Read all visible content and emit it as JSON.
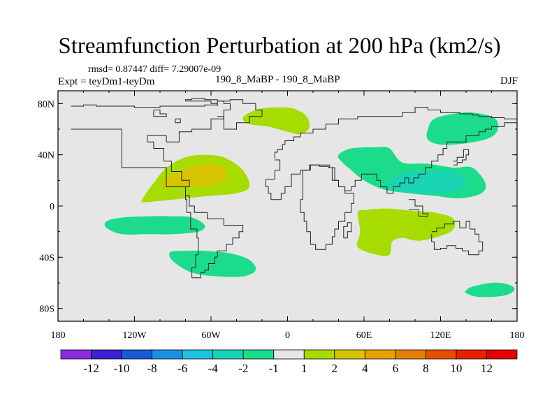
{
  "chart_data": {
    "type": "heatmap",
    "title": "Streamfunction Perturbation at 200 hPa (km2/s)",
    "stats_text": "rmsd= 0.87447  diff= 7.29007e-09",
    "left_label": "Expt = teyDm1-teyDm",
    "center_label": "190_8_MaBP - 190_8_MaBP",
    "right_label": "DJF",
    "x_ticks": [
      "180",
      "120W",
      "60W",
      "0",
      "60E",
      "120E",
      "180"
    ],
    "y_ticks": [
      "80N",
      "40N",
      "0",
      "40S",
      "80S"
    ],
    "xlim": [
      -180,
      180
    ],
    "ylim": [
      -90,
      90
    ],
    "colorbar_labels": [
      "-12",
      "-10",
      "-8",
      "-6",
      "-4",
      "-2",
      "-1",
      "1",
      "2",
      "4",
      "6",
      "8",
      "10",
      "12"
    ],
    "colorbar_colors": [
      "#8a2be2",
      "#3b22d4",
      "#1a5ad8",
      "#1a90e0",
      "#1ac4dc",
      "#19d4b4",
      "#1cdc8c",
      "#e6e6e6",
      "#a6dc00",
      "#d6c400",
      "#e6a000",
      "#e68000",
      "#e64e00",
      "#e62000",
      "#e60000"
    ],
    "regions": [
      {
        "name": "north-atlantic-positive",
        "level": "2",
        "color": "#a6dc00",
        "lon": [
          -114,
          -105,
          -95,
          -80,
          -65,
          -50,
          -35,
          -30,
          -40,
          -60,
          -80,
          -100,
          -113
        ],
        "lat": [
          5,
          18,
          30,
          38,
          40,
          38,
          28,
          15,
          10,
          8,
          6,
          4,
          3
        ]
      },
      {
        "name": "north-atlantic-core",
        "level": "4",
        "color": "#d6c400",
        "lon": [
          -99,
          -90,
          -75,
          -60,
          -50,
          -48,
          -58,
          -75,
          -95
        ],
        "lat": [
          18,
          25,
          31,
          33,
          30,
          22,
          16,
          15,
          16
        ]
      },
      {
        "name": "europe-positive",
        "level": "2",
        "color": "#a6dc00",
        "lon": [
          -35,
          -25,
          -10,
          5,
          15,
          17,
          10,
          0,
          -15,
          -30
        ],
        "lat": [
          69,
          75,
          77,
          76,
          70,
          61,
          56,
          58,
          62,
          64
        ]
      },
      {
        "name": "south-atlantic-negative",
        "level": "-2",
        "color": "#1cdc8c",
        "lon": [
          -142,
          -130,
          -110,
          -90,
          -75,
          -65,
          -70,
          -90,
          -110,
          -130,
          -142
        ],
        "lat": [
          -12,
          -9,
          -8,
          -8,
          -9,
          -15,
          -20,
          -22,
          -22,
          -22,
          -17
        ]
      },
      {
        "name": "south-america-negative",
        "level": "-2",
        "color": "#1cdc8c",
        "lon": [
          -92,
          -80,
          -65,
          -45,
          -30,
          -25,
          -35,
          -55,
          -75,
          -90
        ],
        "lat": [
          -36,
          -35,
          -35,
          -37,
          -42,
          -50,
          -55,
          -55,
          -52,
          -43
        ]
      },
      {
        "name": "asia-negative",
        "level": "-2",
        "color": "#1cdc8c",
        "lon": [
          40,
          50,
          70,
          80,
          90,
          110,
          130,
          145,
          155,
          152,
          135,
          115,
          95,
          75,
          60,
          50,
          42
        ],
        "lat": [
          40,
          45,
          46,
          45,
          34,
          33,
          30,
          30,
          18,
          10,
          6,
          8,
          10,
          13,
          20,
          28,
          35
        ]
      },
      {
        "name": "asia-core",
        "level": "-4",
        "color": "#19d4b4",
        "lon": [
          78,
          90,
          105,
          120,
          132,
          140,
          135,
          118,
          100,
          85,
          78
        ],
        "lat": [
          17,
          25,
          27,
          28,
          26,
          20,
          13,
          10,
          10,
          13,
          15
        ]
      },
      {
        "name": "africa-positive",
        "level": "2",
        "color": "#a6dc00",
        "lon": [
          55,
          62,
          80,
          100,
          115,
          130,
          128,
          105,
          90,
          82,
          80,
          70,
          55,
          57
        ],
        "lat": [
          -5,
          -3,
          -2,
          -4,
          -5,
          -10,
          -20,
          -27,
          -25,
          -28,
          -38,
          -38,
          -32,
          -20
        ]
      },
      {
        "name": "north-pacific-negative",
        "level": "-2",
        "color": "#1cdc8c",
        "lon": [
          110,
          115,
          130,
          145,
          162,
          165,
          158,
          140,
          120,
          110
        ],
        "lat": [
          60,
          68,
          72,
          73,
          69,
          60,
          53,
          49,
          48,
          52
        ]
      },
      {
        "name": "south-pacific-negative",
        "level": "-2",
        "color": "#1cdc8c",
        "lon": [
          140,
          145,
          160,
          172,
          178,
          170,
          150,
          140
        ],
        "lat": [
          -66,
          -63,
          -60,
          -61,
          -65,
          -70,
          -71,
          -68
        ]
      }
    ],
    "coastlines": [
      {
        "name": "americas-coastline",
        "lon": [
          -170,
          -160,
          -160,
          -150,
          -150,
          -120,
          -120,
          -100,
          -100,
          -65,
          -65,
          -55,
          -55,
          -60,
          -60,
          -80,
          -80,
          -75,
          -75,
          -65,
          -65,
          -55,
          -55,
          -50,
          -50,
          -45,
          -45,
          -50,
          -50,
          -60,
          -60,
          -75,
          -75,
          -85,
          -85,
          -95,
          -95,
          -110,
          -110,
          -105,
          -105,
          -97,
          -97,
          -91,
          -91,
          -83,
          -83,
          -77,
          -77,
          -80,
          -80,
          -77,
          -77,
          -73,
          -73,
          -63,
          -63,
          -50,
          -50,
          -35,
          -35,
          -38,
          -38,
          -43,
          -43,
          -48,
          -48,
          -55,
          -55,
          -57,
          -57,
          -62,
          -62,
          -65,
          -65,
          -68,
          -68,
          -75,
          -75,
          -72,
          -72,
          -70,
          -70,
          -71,
          -71,
          -76,
          -76,
          -79,
          -79,
          -80,
          -80,
          -95,
          -95,
          -130,
          -130,
          -170
        ],
        "lat": [
          78,
          78,
          79,
          79,
          78,
          78,
          77,
          77,
          78,
          78,
          79,
          79,
          80,
          80,
          82,
          82,
          83,
          83,
          84,
          84,
          83,
          83,
          82,
          82,
          80,
          80,
          75,
          75,
          68,
          68,
          60,
          60,
          58,
          58,
          50,
          50,
          55,
          55,
          50,
          50,
          45,
          45,
          35,
          35,
          27,
          27,
          20,
          20,
          15,
          15,
          8,
          8,
          0,
          0,
          -5,
          -5,
          -10,
          -10,
          -15,
          -15,
          -20,
          -20,
          -25,
          -25,
          -30,
          -30,
          -35,
          -35,
          -40,
          -40,
          -45,
          -45,
          -50,
          -50,
          -52,
          -52,
          -56,
          -56,
          -48,
          -48,
          -38,
          -38,
          -25,
          -25,
          -18,
          -18,
          -5,
          -5,
          5,
          5,
          15,
          15,
          30,
          30,
          60,
          60
        ]
      },
      {
        "name": "eurasia-africa-coastline",
        "lon": [
          -10,
          -10,
          -8,
          -8,
          -4,
          -4,
          -2,
          -2,
          5,
          5,
          10,
          10,
          20,
          20,
          30,
          30,
          40,
          40,
          55,
          55,
          90,
          90,
          100,
          100,
          110,
          110,
          120,
          120,
          135,
          135,
          145,
          145,
          150,
          150,
          160,
          160,
          170,
          170,
          180,
          180,
          170,
          170,
          160,
          160,
          155,
          155,
          150,
          150,
          140,
          140,
          125,
          125,
          122,
          122,
          118,
          118,
          113,
          113,
          108,
          108,
          103,
          103,
          99,
          99,
          95,
          95,
          92,
          92,
          88,
          88,
          83,
          83,
          78,
          78,
          73,
          73,
          70,
          70,
          63,
          63,
          58,
          58,
          53,
          53,
          50,
          50,
          45,
          45,
          40,
          40,
          37,
          37,
          33,
          33,
          25,
          25,
          18,
          18,
          10,
          10,
          3,
          3,
          -2,
          -2,
          -5,
          -5,
          -8,
          -8,
          -13,
          -13,
          -15,
          -15,
          -17,
          -17,
          -10,
          -10,
          -6,
          -6,
          -10
        ],
        "lat": [
          37,
          42,
          42,
          44,
          44,
          48,
          48,
          51,
          51,
          54,
          54,
          57,
          57,
          60,
          60,
          64,
          64,
          68,
          68,
          70,
          70,
          73,
          73,
          77,
          77,
          75,
          75,
          73,
          73,
          72,
          72,
          71,
          71,
          70,
          70,
          69,
          69,
          68,
          68,
          65,
          65,
          62,
          62,
          60,
          60,
          58,
          58,
          55,
          55,
          50,
          50,
          45,
          45,
          40,
          40,
          35,
          35,
          30,
          30,
          25,
          25,
          22,
          22,
          18,
          18,
          22,
          22,
          18,
          18,
          15,
          15,
          10,
          10,
          15,
          15,
          20,
          20,
          25,
          25,
          25,
          25,
          20,
          20,
          15,
          15,
          12,
          12,
          15,
          15,
          20,
          20,
          30,
          30,
          32,
          32,
          32,
          32,
          28,
          28,
          25,
          25,
          15,
          15,
          10,
          10,
          5,
          5,
          5,
          5,
          10,
          10,
          15,
          15,
          21,
          21,
          28,
          28,
          36,
          36
        ]
      },
      {
        "name": "africa-south-coastline",
        "lon": [
          10,
          10,
          13,
          13,
          15,
          15,
          18,
          18,
          22,
          22,
          30,
          30,
          35,
          35,
          37,
          37,
          40,
          40,
          45,
          45,
          50,
          50,
          52,
          52,
          45,
          45,
          40,
          40,
          35,
          35,
          32,
          32,
          25,
          25,
          17,
          17,
          12,
          12,
          10
        ],
        "lat": [
          5,
          -5,
          -5,
          -12,
          -12,
          -20,
          -20,
          -30,
          -30,
          -34,
          -34,
          -30,
          -30,
          -24,
          -24,
          -18,
          -18,
          -12,
          -12,
          -5,
          -5,
          2,
          2,
          10,
          10,
          15,
          15,
          20,
          20,
          30,
          30,
          31,
          31,
          32,
          32,
          28,
          28,
          5,
          5
        ]
      },
      {
        "name": "australia-coastline",
        "lon": [
          113,
          113,
          115,
          115,
          120,
          120,
          125,
          125,
          132,
          132,
          137,
          137,
          142,
          142,
          146,
          146,
          150,
          150,
          153,
          153,
          150,
          150,
          147,
          147,
          143,
          143,
          140,
          140,
          135,
          135,
          130,
          130,
          123,
          123,
          117,
          117,
          113
        ],
        "lat": [
          -22,
          -28,
          -28,
          -34,
          -34,
          -33,
          -33,
          -31,
          -31,
          -33,
          -33,
          -35,
          -35,
          -38,
          -38,
          -38,
          -38,
          -35,
          -35,
          -28,
          -28,
          -22,
          -22,
          -18,
          -18,
          -12,
          -12,
          -17,
          -17,
          -12,
          -12,
          -14,
          -14,
          -17,
          -17,
          -20,
          -20
        ]
      },
      {
        "name": "greenland-coastline",
        "lon": [
          -55,
          -55,
          -45,
          -45,
          -35,
          -35,
          -25,
          -25,
          -20,
          -20,
          -30,
          -30,
          -40,
          -40,
          -50,
          -50,
          -55
        ],
        "lat": [
          78,
          82,
          82,
          83,
          83,
          80,
          80,
          75,
          75,
          70,
          70,
          65,
          65,
          60,
          60,
          70,
          70
        ]
      }
    ],
    "islands": [
      {
        "name": "arctic-island",
        "lon": [
          -105,
          -100,
          -100,
          -95,
          -95,
          -105,
          -105
        ],
        "lat": [
          75,
          75,
          72,
          72,
          70,
          70,
          75
        ]
      },
      {
        "name": "arctic-island-small",
        "lon": [
          -88,
          -84,
          -84,
          -88,
          -88
        ],
        "lat": [
          68,
          68,
          65,
          65,
          68
        ]
      },
      {
        "name": "japan-island",
        "lon": [
          130,
          133,
          133,
          137,
          137,
          140,
          140,
          142,
          142,
          138,
          138,
          133,
          133,
          130
        ],
        "lat": [
          32,
          32,
          34,
          34,
          36,
          36,
          40,
          40,
          44,
          44,
          38,
          38,
          35,
          35
        ]
      },
      {
        "name": "indonesia-island",
        "lon": [
          95,
          100,
          100,
          106,
          106,
          110,
          110,
          103,
          103,
          95
        ],
        "lat": [
          5,
          5,
          0,
          0,
          -6,
          -6,
          -8,
          -8,
          -3,
          -3
        ]
      },
      {
        "name": "madagascar-island",
        "lon": [
          44,
          47,
          47,
          50,
          50,
          47,
          47,
          44,
          44
        ],
        "lat": [
          -25,
          -25,
          -20,
          -20,
          -13,
          -13,
          -16,
          -16,
          -25
        ]
      }
    ]
  }
}
